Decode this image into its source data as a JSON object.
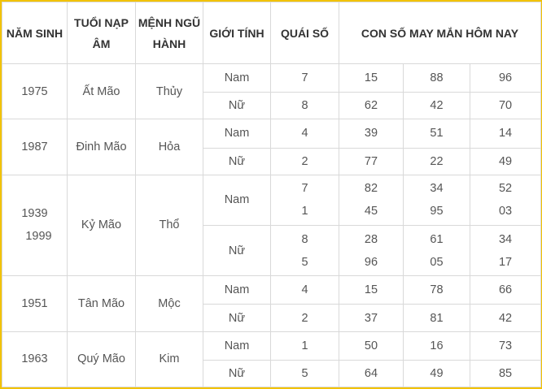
{
  "headers": {
    "year": "NĂM SINH",
    "tuoi_line1": "TUỔI NẠP",
    "tuoi_line2": "ÂM",
    "menh_line1": "MỆNH NGŨ",
    "menh_line2": "HÀNH",
    "gender": "GIỚI TÍNH",
    "quai": "QUÁI SỐ",
    "lucky": "CON SỐ MAY MẮN HÔM NAY"
  },
  "groups": [
    {
      "years": [
        "1975"
      ],
      "tuoi": "Ất Mão",
      "menh": "Thủy",
      "rows": [
        {
          "gender": "Nam",
          "quai": [
            "7"
          ],
          "nums": [
            [
              "15"
            ],
            [
              "88"
            ],
            [
              "96"
            ]
          ]
        },
        {
          "gender": "Nữ",
          "quai": [
            "8"
          ],
          "nums": [
            [
              "62"
            ],
            [
              "42"
            ],
            [
              "70"
            ]
          ]
        }
      ]
    },
    {
      "years": [
        "1987"
      ],
      "tuoi": "Đinh Mão",
      "menh": "Hỏa",
      "rows": [
        {
          "gender": "Nam",
          "quai": [
            "4"
          ],
          "nums": [
            [
              "39"
            ],
            [
              "51"
            ],
            [
              "14"
            ]
          ]
        },
        {
          "gender": "Nữ",
          "quai": [
            "2"
          ],
          "nums": [
            [
              "77"
            ],
            [
              "22"
            ],
            [
              "49"
            ]
          ]
        }
      ]
    },
    {
      "years": [
        "1939",
        "1999"
      ],
      "tuoi": "Kỷ Mão",
      "menh": "Thổ",
      "rows": [
        {
          "gender": "Nam",
          "quai": [
            "7",
            "1"
          ],
          "nums": [
            [
              "82",
              "45"
            ],
            [
              "34",
              "95"
            ],
            [
              "52",
              "03"
            ]
          ]
        },
        {
          "gender": "Nữ",
          "quai": [
            "8",
            "5"
          ],
          "nums": [
            [
              "28",
              "96"
            ],
            [
              "61",
              "05"
            ],
            [
              "34",
              "17"
            ]
          ]
        }
      ]
    },
    {
      "years": [
        "1951"
      ],
      "tuoi": "Tân Mão",
      "menh": "Mộc",
      "rows": [
        {
          "gender": "Nam",
          "quai": [
            "4"
          ],
          "nums": [
            [
              "15"
            ],
            [
              "78"
            ],
            [
              "66"
            ]
          ]
        },
        {
          "gender": "Nữ",
          "quai": [
            "2"
          ],
          "nums": [
            [
              "37"
            ],
            [
              "81"
            ],
            [
              "42"
            ]
          ]
        }
      ]
    },
    {
      "years": [
        "1963"
      ],
      "tuoi": "Quý Mão",
      "menh": "Kim",
      "rows": [
        {
          "gender": "Nam",
          "quai": [
            "1"
          ],
          "nums": [
            [
              "50"
            ],
            [
              "16"
            ],
            [
              "73"
            ]
          ]
        },
        {
          "gender": "Nữ",
          "quai": [
            "5"
          ],
          "nums": [
            [
              "64"
            ],
            [
              "49"
            ],
            [
              "85"
            ]
          ]
        }
      ]
    }
  ],
  "colors": {
    "border_accent": "#f2c200",
    "grid_line": "#d9d9d9",
    "header_text": "#333333",
    "body_text": "#555555"
  }
}
